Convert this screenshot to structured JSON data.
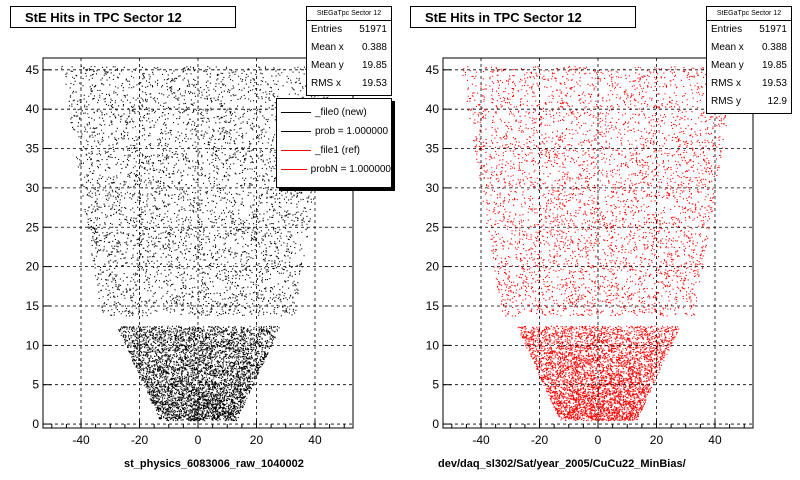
{
  "panels": [
    {
      "title": "StE Hits in TPC Sector 12",
      "stats": {
        "name": "StEGaTpc Sector 12",
        "rows": [
          {
            "label": "Entries",
            "value": "51971"
          },
          {
            "label": "Mean x",
            "value": "0.388"
          },
          {
            "label": "Mean y",
            "value": "19.85"
          },
          {
            "label": "RMS x",
            "value": "19.53"
          }
        ]
      },
      "legend": [
        {
          "label": "_file0 (new)",
          "color": "#000000"
        },
        {
          "label": "prob = 1.000000",
          "color": "#000000"
        },
        {
          "label": "_file1 (ref)",
          "color": "#ff0000"
        },
        {
          "label": "probN = 1.000000",
          "color": "#ff0000"
        }
      ],
      "footer": "st_physics_6083006_raw_1040002"
    },
    {
      "title": "StE Hits in TPC Sector 12",
      "stats": {
        "name": "StEGaTpc Sector 12",
        "rows": [
          {
            "label": "Entries",
            "value": "51971"
          },
          {
            "label": "Mean x",
            "value": "0.388"
          },
          {
            "label": "Mean y",
            "value": "19.85"
          },
          {
            "label": "RMS x",
            "value": "19.53"
          },
          {
            "label": "RMS y",
            "value": "12.9"
          }
        ]
      },
      "footer": "dev/daq_sl302/Sat/year_2005/CuCu22_MinBias/"
    }
  ],
  "chart_data": [
    {
      "type": "scatter",
      "title": "StE Hits in TPC Sector 12",
      "color": "#000000",
      "xlim": [
        -53,
        53
      ],
      "ylim": [
        -0.5,
        46.5
      ],
      "xticks": [
        -40,
        -20,
        0,
        20,
        40
      ],
      "yticks": [
        0,
        5,
        10,
        15,
        20,
        25,
        30,
        35,
        40,
        45
      ],
      "grid": true,
      "legend_position": "top-right",
      "entries": 51971,
      "mean_x": 0.388,
      "mean_y": 19.85,
      "rms_x": 19.53,
      "region": {
        "description_rows_y": [
          0.5,
          45.5
        ],
        "upper_half_width_bottom": 12.5,
        "upper_half_width_top": 47,
        "lower_half_width_bottom": 12.5,
        "lower_half_width_top": 28,
        "gap_y": [
          12.5,
          13.8
        ]
      }
    },
    {
      "type": "scatter",
      "title": "StE Hits in TPC Sector 12",
      "color": "#ff0000",
      "xlim": [
        -53,
        53
      ],
      "ylim": [
        -0.5,
        46.5
      ],
      "xticks": [
        -40,
        -20,
        0,
        20,
        40
      ],
      "yticks": [
        0,
        5,
        10,
        15,
        20,
        25,
        30,
        35,
        40,
        45
      ],
      "grid": true,
      "entries": 51971,
      "mean_x": 0.388,
      "mean_y": 19.85,
      "rms_x": 19.53,
      "rms_y": 12.9,
      "region": {
        "description_rows_y": [
          0.5,
          45.5
        ],
        "upper_half_width_bottom": 12.5,
        "upper_half_width_top": 47,
        "lower_half_width_bottom": 12.5,
        "lower_half_width_top": 28,
        "gap_y": [
          12.5,
          13.8
        ]
      }
    }
  ]
}
